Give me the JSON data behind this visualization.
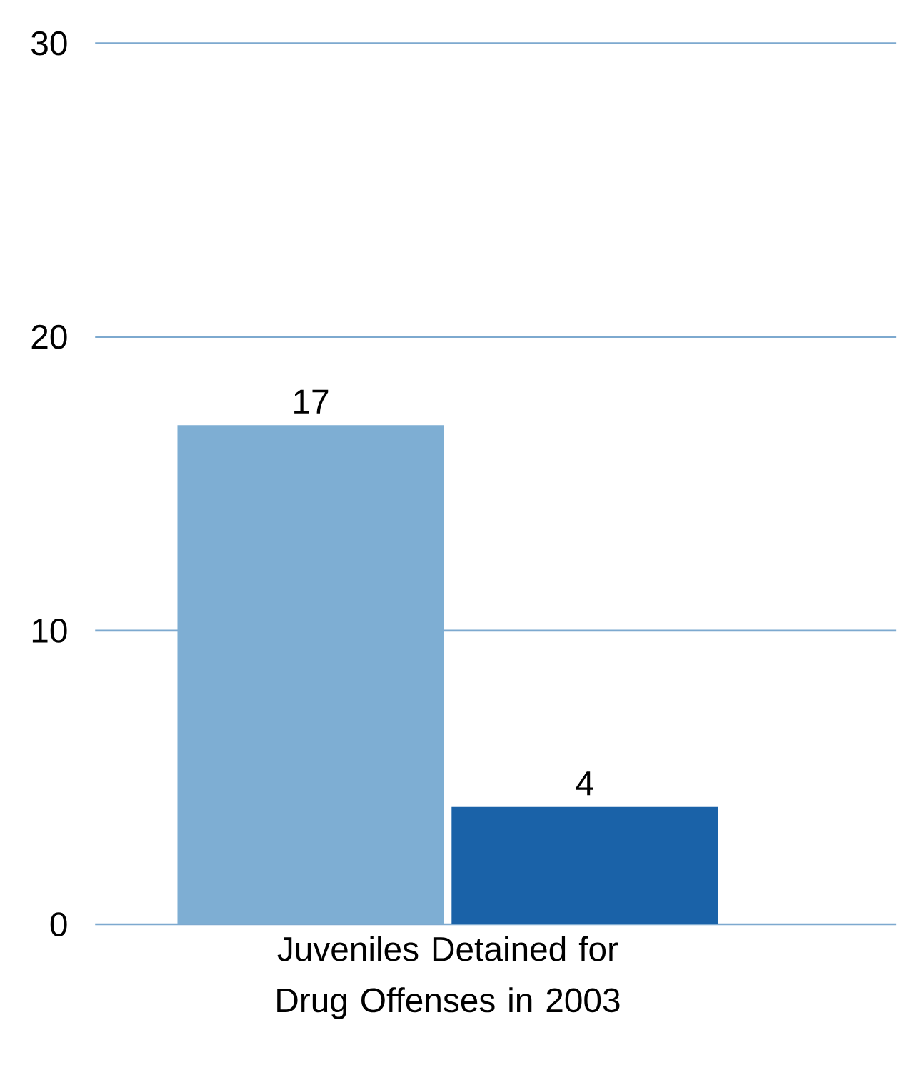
{
  "chart_data": {
    "type": "bar",
    "categories": [
      "Juveniles Detained for Drug Offenses in 2003"
    ],
    "series": [
      {
        "color": "#7eaed3",
        "values": [
          17
        ]
      },
      {
        "color": "#1a62a8",
        "values": [
          4
        ]
      }
    ],
    "ylim": [
      0,
      30
    ],
    "yticks": [
      0,
      10,
      20,
      30
    ],
    "grid": "y",
    "data_labels": true
  }
}
